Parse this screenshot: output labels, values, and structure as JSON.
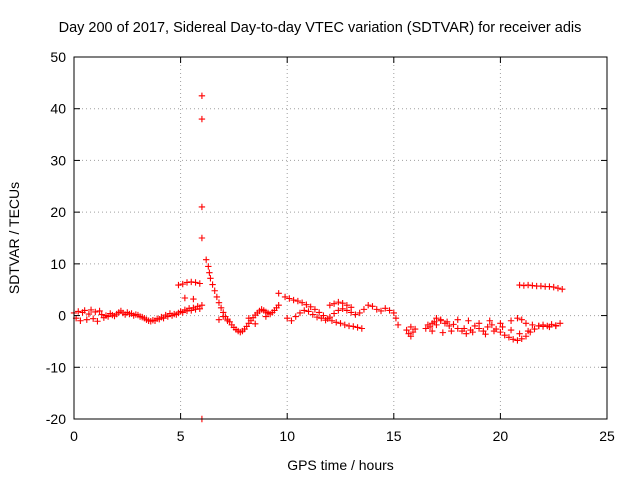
{
  "chart_data": {
    "type": "scatter",
    "title": "Day 200 of 2017, Sidereal Day-to-day VTEC variation (SDTVAR) for receiver adis",
    "xlabel": "GPS time / hours",
    "ylabel": "SDTVAR / TECUs",
    "xlim": [
      0,
      25
    ],
    "ylim": [
      -20,
      50
    ],
    "xticks": [
      0,
      5,
      10,
      15,
      20,
      25
    ],
    "xtick_labels": [
      "0",
      "5",
      "10",
      "15",
      "20",
      "25"
    ],
    "yticks": [
      -20,
      -10,
      0,
      10,
      20,
      30,
      40,
      50
    ],
    "ytick_labels": [
      "-20",
      "-10",
      "0",
      "10",
      "20",
      "30",
      "40",
      "50"
    ],
    "grid": true,
    "marker": "+",
    "color": "#ff0000",
    "series": [
      {
        "name": "SDTVAR",
        "points": [
          [
            0.0,
            0.5
          ],
          [
            0.1,
            -0.5
          ],
          [
            0.2,
            0.8
          ],
          [
            0.3,
            -1.0
          ],
          [
            0.4,
            0.6
          ],
          [
            0.5,
            1.0
          ],
          [
            0.6,
            -0.8
          ],
          [
            0.7,
            0.3
          ],
          [
            0.8,
            1.1
          ],
          [
            0.9,
            -0.6
          ],
          [
            1.0,
            0.7
          ],
          [
            1.1,
            -1.1
          ],
          [
            1.2,
            0.9
          ],
          [
            1.3,
            0.2
          ],
          [
            1.4,
            -0.4
          ],
          [
            1.5,
            0.0
          ],
          [
            1.6,
            -0.2
          ],
          [
            1.7,
            0.4
          ],
          [
            1.8,
            0.1
          ],
          [
            1.9,
            -0.1
          ],
          [
            2.0,
            0.3
          ],
          [
            2.1,
            0.6
          ],
          [
            2.2,
            0.9
          ],
          [
            2.3,
            0.5
          ],
          [
            2.4,
            0.2
          ],
          [
            2.5,
            0.6
          ],
          [
            2.6,
            0.3
          ],
          [
            2.7,
            0.4
          ],
          [
            2.8,
            0.0
          ],
          [
            2.9,
            0.2
          ],
          [
            3.0,
            0.1
          ],
          [
            3.1,
            -0.2
          ],
          [
            3.2,
            -0.3
          ],
          [
            3.3,
            -0.5
          ],
          [
            3.4,
            -0.8
          ],
          [
            3.5,
            -1.0
          ],
          [
            3.6,
            -1.1
          ],
          [
            3.7,
            -0.9
          ],
          [
            3.8,
            -1.0
          ],
          [
            3.9,
            -0.6
          ],
          [
            4.0,
            -0.7
          ],
          [
            4.1,
            -0.3
          ],
          [
            4.2,
            -0.5
          ],
          [
            4.3,
            0.1
          ],
          [
            4.4,
            -0.2
          ],
          [
            4.5,
            0.4
          ],
          [
            4.6,
            0.0
          ],
          [
            4.7,
            0.3
          ],
          [
            4.8,
            0.2
          ],
          [
            4.9,
            0.5
          ],
          [
            5.0,
            0.8
          ],
          [
            5.1,
            0.6
          ],
          [
            5.2,
            1.1
          ],
          [
            5.3,
            0.9
          ],
          [
            5.4,
            1.4
          ],
          [
            5.5,
            1.0
          ],
          [
            5.6,
            1.5
          ],
          [
            5.7,
            1.2
          ],
          [
            5.8,
            1.8
          ],
          [
            5.9,
            1.3
          ],
          [
            6.0,
            2.0
          ],
          [
            4.9,
            5.9
          ],
          [
            5.1,
            6.1
          ],
          [
            5.3,
            6.4
          ],
          [
            5.5,
            6.5
          ],
          [
            5.7,
            6.4
          ],
          [
            5.9,
            6.2
          ],
          [
            5.2,
            3.4
          ],
          [
            5.6,
            3.2
          ],
          [
            6.0,
            42.5
          ],
          [
            6.0,
            38.0
          ],
          [
            6.0,
            21.0
          ],
          [
            6.0,
            15.0
          ],
          [
            6.0,
            -20.0
          ],
          [
            6.2,
            10.8
          ],
          [
            6.3,
            9.5
          ],
          [
            6.35,
            8.3
          ],
          [
            6.4,
            7.2
          ],
          [
            6.5,
            6.0
          ],
          [
            6.6,
            4.8
          ],
          [
            6.7,
            3.6
          ],
          [
            6.8,
            2.5
          ],
          [
            6.9,
            1.5
          ],
          [
            7.0,
            0.6
          ],
          [
            7.1,
            -0.2
          ],
          [
            7.2,
            -0.7
          ],
          [
            7.3,
            -1.2
          ],
          [
            7.4,
            -1.8
          ],
          [
            7.5,
            -2.3
          ],
          [
            7.6,
            -2.7
          ],
          [
            7.7,
            -3.0
          ],
          [
            7.8,
            -3.2
          ],
          [
            7.9,
            -3.0
          ],
          [
            8.0,
            -2.6
          ],
          [
            8.1,
            -2.1
          ],
          [
            8.2,
            -1.5
          ],
          [
            8.3,
            -1.0
          ],
          [
            8.4,
            -0.4
          ],
          [
            8.5,
            0.1
          ],
          [
            8.6,
            0.5
          ],
          [
            8.7,
            0.9
          ],
          [
            8.8,
            1.2
          ],
          [
            8.9,
            1.0
          ],
          [
            9.0,
            0.7
          ],
          [
            9.1,
            0.5
          ],
          [
            9.2,
            0.3
          ],
          [
            9.3,
            0.6
          ],
          [
            9.4,
            1.0
          ],
          [
            9.5,
            1.5
          ],
          [
            9.6,
            2.0
          ],
          [
            6.8,
            -0.8
          ],
          [
            7.0,
            -0.2
          ],
          [
            7.2,
            -1.0
          ],
          [
            8.2,
            -0.5
          ],
          [
            8.5,
            -1.6
          ],
          [
            9.0,
            -0.2
          ],
          [
            9.6,
            4.3
          ],
          [
            9.9,
            3.6
          ],
          [
            10.1,
            3.3
          ],
          [
            10.3,
            3.0
          ],
          [
            10.5,
            2.8
          ],
          [
            10.7,
            2.5
          ],
          [
            10.9,
            2.1
          ],
          [
            11.1,
            1.7
          ],
          [
            11.3,
            1.2
          ],
          [
            11.5,
            0.6
          ],
          [
            11.7,
            0.0
          ],
          [
            11.9,
            -0.6
          ],
          [
            12.1,
            -1.0
          ],
          [
            12.3,
            -1.3
          ],
          [
            12.5,
            -1.5
          ],
          [
            12.7,
            -1.8
          ],
          [
            12.9,
            -2.0
          ],
          [
            13.1,
            -2.1
          ],
          [
            13.3,
            -2.3
          ],
          [
            13.5,
            -2.5
          ],
          [
            10.0,
            -0.5
          ],
          [
            10.2,
            -1.0
          ],
          [
            10.4,
            -0.2
          ],
          [
            10.6,
            0.5
          ],
          [
            10.8,
            1.0
          ],
          [
            11.0,
            0.8
          ],
          [
            11.2,
            0.2
          ],
          [
            11.4,
            -0.3
          ],
          [
            11.6,
            -0.5
          ],
          [
            11.8,
            -0.9
          ],
          [
            12.0,
            -0.3
          ],
          [
            12.2,
            0.4
          ],
          [
            12.4,
            1.0
          ],
          [
            12.6,
            1.3
          ],
          [
            12.8,
            1.0
          ],
          [
            13.0,
            0.6
          ],
          [
            13.2,
            0.2
          ],
          [
            13.4,
            0.5
          ],
          [
            13.6,
            1.2
          ],
          [
            13.8,
            2.0
          ],
          [
            14.0,
            1.8
          ],
          [
            14.2,
            1.2
          ],
          [
            14.4,
            0.9
          ],
          [
            14.6,
            1.4
          ],
          [
            14.8,
            1.0
          ],
          [
            15.0,
            0.5
          ],
          [
            15.1,
            -0.5
          ],
          [
            15.2,
            -1.8
          ],
          [
            12.0,
            2.0
          ],
          [
            12.2,
            2.3
          ],
          [
            12.4,
            2.6
          ],
          [
            12.6,
            2.4
          ],
          [
            12.8,
            2.0
          ],
          [
            13.0,
            1.6
          ],
          [
            15.6,
            -2.8
          ],
          [
            15.7,
            -3.5
          ],
          [
            15.8,
            -4.0
          ],
          [
            15.9,
            -3.2
          ],
          [
            16.0,
            -2.6
          ],
          [
            15.8,
            -2.2
          ],
          [
            16.5,
            -2.5
          ],
          [
            16.6,
            -1.8
          ],
          [
            16.7,
            -2.2
          ],
          [
            16.8,
            -1.5
          ],
          [
            16.9,
            -1.2
          ],
          [
            17.0,
            -1.8
          ],
          [
            17.2,
            -1.0
          ],
          [
            17.4,
            -1.5
          ],
          [
            17.6,
            -2.0
          ],
          [
            17.8,
            -1.7
          ],
          [
            18.0,
            -2.5
          ],
          [
            18.2,
            -3.0
          ],
          [
            18.4,
            -3.5
          ],
          [
            18.6,
            -2.8
          ],
          [
            18.8,
            -2.0
          ],
          [
            19.0,
            -2.5
          ],
          [
            19.2,
            -3.0
          ],
          [
            19.4,
            -2.2
          ],
          [
            19.6,
            -1.8
          ],
          [
            19.8,
            -2.6
          ],
          [
            20.0,
            -3.2
          ],
          [
            20.2,
            -3.8
          ],
          [
            20.4,
            -4.2
          ],
          [
            20.6,
            -4.6
          ],
          [
            20.8,
            -4.8
          ],
          [
            21.0,
            -4.5
          ],
          [
            21.2,
            -4.0
          ],
          [
            21.4,
            -3.2
          ],
          [
            21.6,
            -2.6
          ],
          [
            21.8,
            -2.0
          ],
          [
            22.0,
            -1.8
          ],
          [
            22.2,
            -2.0
          ],
          [
            22.4,
            -1.7
          ],
          [
            22.6,
            -1.9
          ],
          [
            22.8,
            -1.5
          ],
          [
            17.0,
            -0.5
          ],
          [
            17.2,
            -0.8
          ],
          [
            17.5,
            -1.2
          ],
          [
            18.0,
            -0.8
          ],
          [
            18.5,
            -1.0
          ],
          [
            19.0,
            -1.5
          ],
          [
            19.5,
            -1.0
          ],
          [
            20.0,
            -1.5
          ],
          [
            20.5,
            -1.0
          ],
          [
            20.8,
            -0.5
          ],
          [
            21.0,
            -0.8
          ],
          [
            21.2,
            -1.5
          ],
          [
            21.5,
            -1.8
          ],
          [
            21.8,
            -2.0
          ],
          [
            22.0,
            -2.1
          ],
          [
            22.3,
            -2.2
          ],
          [
            22.6,
            -2.0
          ],
          [
            16.8,
            -3.0
          ],
          [
            17.3,
            -3.3
          ],
          [
            17.7,
            -3.0
          ],
          [
            18.3,
            -2.5
          ],
          [
            18.7,
            -3.2
          ],
          [
            19.3,
            -3.6
          ],
          [
            19.7,
            -3.0
          ],
          [
            20.1,
            -2.2
          ],
          [
            20.5,
            -2.8
          ],
          [
            20.9,
            -3.5
          ],
          [
            21.3,
            -3.0
          ],
          [
            20.9,
            5.9
          ],
          [
            21.1,
            5.8
          ],
          [
            21.3,
            5.9
          ],
          [
            21.5,
            5.8
          ],
          [
            21.7,
            5.7
          ],
          [
            21.9,
            5.7
          ],
          [
            22.1,
            5.6
          ],
          [
            22.3,
            5.6
          ],
          [
            22.5,
            5.5
          ],
          [
            22.7,
            5.3
          ],
          [
            22.9,
            5.1
          ]
        ]
      }
    ]
  }
}
